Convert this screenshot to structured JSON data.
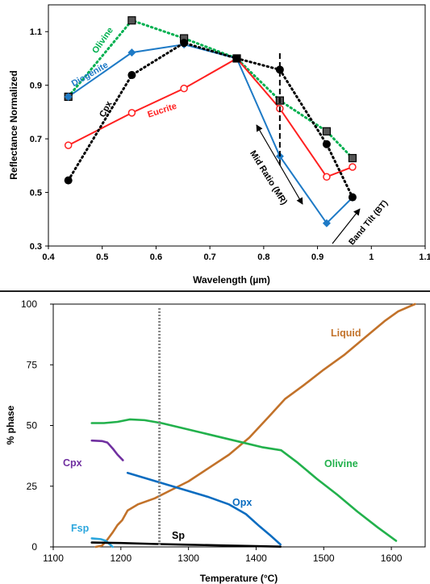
{
  "chart_data": [
    {
      "type": "line",
      "xlabel": "Wavelength (µm)",
      "ylabel": "Reflectance Normalized",
      "xlim": [
        0.4,
        1.1
      ],
      "ylim": [
        0.3,
        1.2
      ],
      "xticks": [
        0.4,
        0.5,
        0.6,
        0.7,
        0.8,
        0.9,
        1,
        1.1
      ],
      "xtick_labels": [
        "0.4",
        "0.5",
        "0.6",
        "0.7",
        "0.8",
        "0.9",
        "1",
        "1.1"
      ],
      "yticks": [
        0.3,
        0.5,
        0.7,
        0.9,
        1.1
      ],
      "ytick_labels": [
        "0.3",
        "0.5",
        "0.7",
        "0.9",
        "1.1"
      ],
      "grid": false,
      "series": [
        {
          "name": "Olivine",
          "color": "#00b050",
          "style": "dotted",
          "marker": "square",
          "x": [
            0.437,
            0.555,
            0.652,
            0.75,
            0.83,
            0.917,
            0.965
          ],
          "y": [
            0.857,
            1.142,
            1.075,
            1.0,
            0.843,
            0.728,
            0.628
          ]
        },
        {
          "name": "Diogenite",
          "color": "#1e7ac6",
          "style": "solid",
          "marker": "diamond",
          "x": [
            0.437,
            0.555,
            0.652,
            0.75,
            0.83,
            0.917,
            0.965
          ],
          "y": [
            0.857,
            1.022,
            1.052,
            1.0,
            0.635,
            0.385,
            0.481
          ]
        },
        {
          "name": "Eucrite",
          "color": "#ff2020",
          "style": "solid",
          "marker": "circle-open",
          "x": [
            0.437,
            0.555,
            0.652,
            0.75,
            0.83,
            0.917,
            0.965
          ],
          "y": [
            0.676,
            0.797,
            0.888,
            1.0,
            0.813,
            0.558,
            0.595
          ]
        },
        {
          "name": "Cpx",
          "color": "#000000",
          "style": "dotted",
          "marker": "circle",
          "x": [
            0.437,
            0.555,
            0.652,
            0.75,
            0.83,
            0.917,
            0.965
          ],
          "y": [
            0.545,
            0.938,
            1.058,
            1.0,
            0.958,
            0.68,
            0.482
          ]
        }
      ],
      "annotations": {
        "dashed_line_x": 0.83,
        "mid_ratio": "Mid Ratio (MR)",
        "band_tilt": "Band Tilt (BT)"
      }
    },
    {
      "type": "line",
      "xlabel": "Temperature (°C)",
      "ylabel": "% phase",
      "xlim": [
        1100,
        1650
      ],
      "ylim": [
        0,
        100
      ],
      "xticks": [
        1100,
        1200,
        1300,
        1400,
        1500,
        1600
      ],
      "xtick_labels": [
        "1100",
        "1200",
        "1300",
        "1400",
        "1500",
        "1600"
      ],
      "yticks": [
        0,
        25,
        50,
        75,
        100
      ],
      "ytick_labels": [
        "0",
        "25",
        "50",
        "75",
        "100"
      ],
      "grid": false,
      "dashed_line_x": 1257,
      "series": [
        {
          "name": "Liquid",
          "color": "#c2722a",
          "x": [
            1163,
            1172,
            1180,
            1188,
            1195,
            1202,
            1210,
            1225,
            1250,
            1275,
            1300,
            1330,
            1360,
            1390,
            1420,
            1443,
            1470,
            1500,
            1530,
            1560,
            1590,
            1610,
            1635
          ],
          "y": [
            0,
            0.5,
            3,
            6,
            9,
            11,
            15,
            17.5,
            20,
            23.5,
            27,
            32.5,
            38,
            45,
            54,
            61,
            66.5,
            73,
            79,
            86,
            93,
            97,
            100
          ]
        },
        {
          "name": "Olivine",
          "color": "#22b14c",
          "x": [
            1157,
            1175,
            1195,
            1213,
            1235,
            1260,
            1290,
            1320,
            1350,
            1380,
            1410,
            1437,
            1460,
            1490,
            1520,
            1550,
            1580,
            1607
          ],
          "y": [
            51,
            51,
            51.5,
            52.5,
            52.2,
            51,
            49,
            47,
            45,
            43,
            41,
            39.8,
            35,
            28,
            21.5,
            14.5,
            8,
            2.5
          ]
        },
        {
          "name": "Opx",
          "color": "#0a6cc0",
          "x": [
            1210,
            1240,
            1270,
            1300,
            1330,
            1360,
            1385,
            1405,
            1420,
            1436
          ],
          "y": [
            30.5,
            28,
            25.5,
            23,
            20.5,
            17.5,
            13.5,
            8.5,
            5,
            1
          ]
        },
        {
          "name": "Cpx",
          "color": "#7030a0",
          "x": [
            1157,
            1172,
            1180,
            1188,
            1195,
            1203
          ],
          "y": [
            43.8,
            43.6,
            43,
            40.5,
            38,
            35.7
          ]
        },
        {
          "name": "Fsp",
          "color": "#2ba6dd",
          "x": [
            1157,
            1170,
            1178,
            1183,
            1188
          ],
          "y": [
            3.5,
            3.2,
            2.5,
            1.2,
            0
          ]
        },
        {
          "name": "Sp",
          "color": "#000000",
          "x": [
            1157,
            1200,
            1250,
            1300,
            1350,
            1400,
            1436
          ],
          "y": [
            1.8,
            1.6,
            1.2,
            0.9,
            0.6,
            0.3,
            0.1
          ]
        }
      ]
    }
  ]
}
